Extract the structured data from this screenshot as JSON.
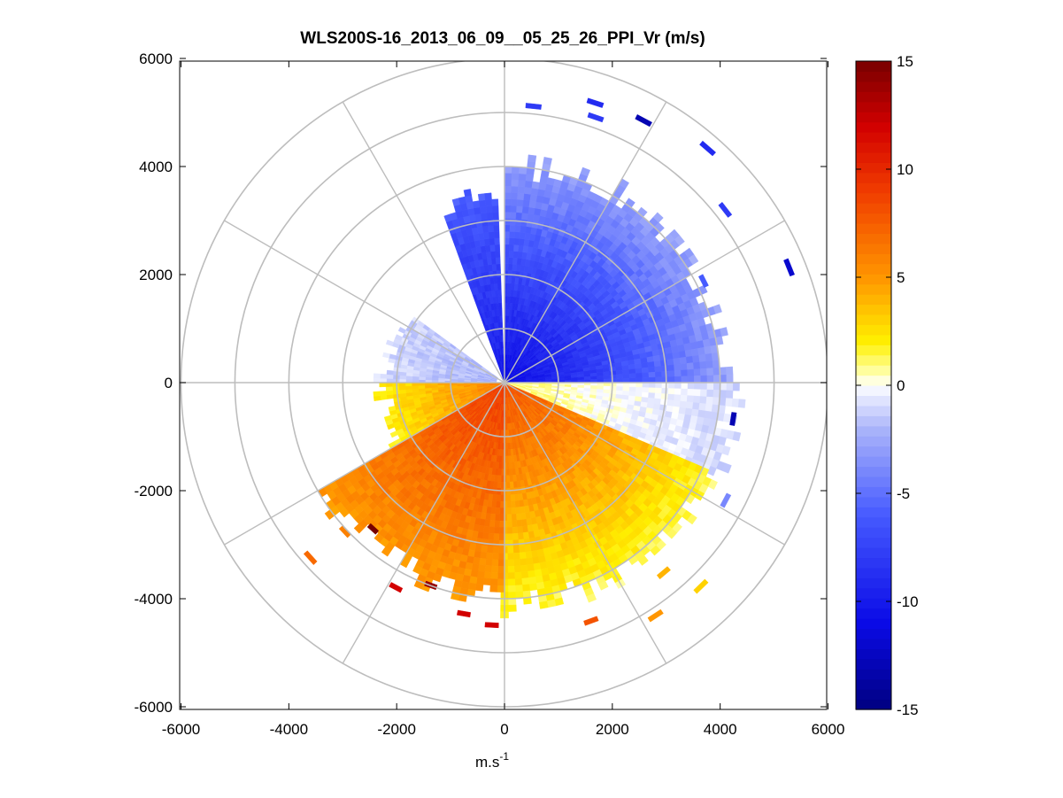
{
  "chart_data": {
    "type": "heatmap",
    "subtype": "polar-ppi",
    "title": "WLS200S-16_2013_06_09__05_25_26_PPI_Vr (m/s)",
    "xlabel_base": "m.s",
    "xlabel_exp": "-1",
    "ylabel": "",
    "xlim": [
      -6000,
      6000
    ],
    "ylim": [
      -6000,
      6000
    ],
    "x_ticks": [
      -6000,
      -4000,
      -2000,
      0,
      2000,
      4000,
      6000
    ],
    "y_ticks": [
      -6000,
      -4000,
      -2000,
      0,
      2000,
      4000,
      6000
    ],
    "x_tick_labels": [
      "-6000",
      "-4000",
      "-2000",
      "0",
      "2000",
      "4000",
      "6000"
    ],
    "y_tick_labels": [
      "-6000",
      "-4000",
      "-2000",
      "0",
      "2000",
      "4000",
      "6000"
    ],
    "polar_grid": {
      "ring_radii": [
        1000,
        2000,
        3000,
        4000,
        5000,
        6000
      ],
      "spoke_angles_deg": [
        0,
        30,
        60,
        90,
        120,
        150,
        180,
        210,
        240,
        270,
        300,
        330
      ]
    },
    "colorbar": {
      "limits": [
        -15,
        15
      ],
      "ticks": [
        -15,
        -10,
        -5,
        0,
        5,
        10,
        15
      ],
      "tick_labels": [
        "-15",
        "-10",
        "-5",
        "0",
        "5",
        "10",
        "15"
      ],
      "colormap": "blue-white-yellow-red"
    },
    "range_step_m": 120,
    "sectors": [
      {
        "az_from": 0,
        "az_to": 90,
        "r_min": 40,
        "r_max": 4000,
        "v_near": -11,
        "v_far": -3
      },
      {
        "az_from": 90,
        "az_to": 113,
        "r_min": 40,
        "r_max": 4200,
        "v_near": 1,
        "v_far": -1
      },
      {
        "az_from": 113,
        "az_to": 180,
        "r_min": 40,
        "r_max": 4100,
        "v_near": 8,
        "v_far": 1.5
      },
      {
        "az_from": 180,
        "az_to": 240,
        "r_min": 40,
        "r_max": 3800,
        "v_near": 9,
        "v_far": 5
      },
      {
        "az_from": 240,
        "az_to": 270,
        "r_min": 40,
        "r_max": 2200,
        "v_near": 6,
        "v_far": 2
      },
      {
        "az_from": 270,
        "az_to": 305,
        "r_min": 150,
        "r_max": 2200,
        "v_near": -2,
        "v_far": -1
      },
      {
        "az_from": 340,
        "az_to": 358,
        "r_min": 40,
        "r_max": 3400,
        "v_near": -10,
        "v_far": -6
      }
    ],
    "scattered_gates": [
      {
        "az": 6,
        "r": 5100,
        "v": -8
      },
      {
        "az": 18,
        "r": 5400,
        "v": -9
      },
      {
        "az": 19,
        "r": 5150,
        "v": -8
      },
      {
        "az": 28,
        "r": 5450,
        "v": -13
      },
      {
        "az": 41,
        "r": 5700,
        "v": -9
      },
      {
        "az": 52,
        "r": 5150,
        "v": -8
      },
      {
        "az": 63,
        "r": 4100,
        "v": -6
      },
      {
        "az": 68,
        "r": 5650,
        "v": -12
      },
      {
        "az": 99,
        "r": 4250,
        "v": -13
      },
      {
        "az": 118,
        "r": 4600,
        "v": -4
      },
      {
        "az": 136,
        "r": 5200,
        "v": 3
      },
      {
        "az": 140,
        "r": 4550,
        "v": 4
      },
      {
        "az": 147,
        "r": 5100,
        "v": 5
      },
      {
        "az": 160,
        "r": 4650,
        "v": 8
      },
      {
        "az": 183,
        "r": 4450,
        "v": 12
      },
      {
        "az": 190,
        "r": 4300,
        "v": 12
      },
      {
        "az": 200,
        "r": 3950,
        "v": 14
      },
      {
        "az": 208,
        "r": 4250,
        "v": 12
      },
      {
        "az": 222,
        "r": 3600,
        "v": 15
      },
      {
        "az": 228,
        "r": 4800,
        "v": 7
      },
      {
        "az": 227,
        "r": 4000,
        "v": 6
      }
    ]
  }
}
